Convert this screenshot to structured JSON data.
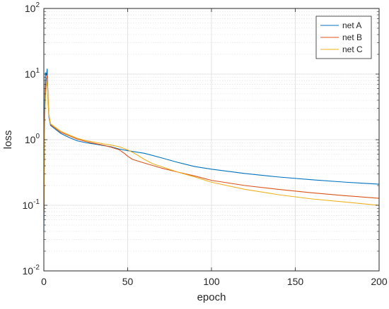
{
  "chart_data": {
    "type": "line",
    "xlabel": "epoch",
    "ylabel": "loss",
    "xlim": [
      0,
      200
    ],
    "ylim": [
      0.01,
      100
    ],
    "yscale": "log",
    "grid": true,
    "minor_grid": true,
    "legend_position": "top-right",
    "x_ticks": [
      0,
      50,
      100,
      150,
      200
    ],
    "x_tick_labels": [
      "0",
      "50",
      "100",
      "150",
      "200"
    ],
    "y_ticks": [
      0.01,
      0.1,
      1,
      10,
      100
    ],
    "y_tick_labels": [
      {
        "base": "10",
        "exp": "-2"
      },
      {
        "base": "10",
        "exp": "-1"
      },
      {
        "base": "10",
        "exp": "0"
      },
      {
        "base": "10",
        "exp": "1"
      },
      {
        "base": "10",
        "exp": "2"
      }
    ],
    "series": [
      {
        "name": "net A",
        "color": "#0072BD",
        "points": [
          [
            0,
            0.04
          ],
          [
            0.5,
            3.5
          ],
          [
            1,
            10.5
          ],
          [
            1.5,
            9.5
          ],
          [
            2,
            12.0
          ],
          [
            2.5,
            4.0
          ],
          [
            3,
            2.2
          ],
          [
            4,
            1.65
          ],
          [
            6,
            1.5
          ],
          [
            10,
            1.25
          ],
          [
            15,
            1.08
          ],
          [
            20,
            0.96
          ],
          [
            25,
            0.9
          ],
          [
            30,
            0.86
          ],
          [
            35,
            0.82
          ],
          [
            40,
            0.78
          ],
          [
            45,
            0.72
          ],
          [
            50,
            0.68
          ],
          [
            55,
            0.65
          ],
          [
            60,
            0.62
          ],
          [
            70,
            0.53
          ],
          [
            80,
            0.45
          ],
          [
            90,
            0.39
          ],
          [
            100,
            0.355
          ],
          [
            120,
            0.305
          ],
          [
            140,
            0.27
          ],
          [
            160,
            0.245
          ],
          [
            180,
            0.225
          ],
          [
            200,
            0.21
          ]
        ]
      },
      {
        "name": "net B",
        "color": "#D95319",
        "points": [
          [
            0,
            0.06
          ],
          [
            0.5,
            2.5
          ],
          [
            1,
            5.5
          ],
          [
            1.5,
            8.5
          ],
          [
            2,
            9.5
          ],
          [
            2.5,
            5.0
          ],
          [
            3,
            2.4
          ],
          [
            4,
            1.7
          ],
          [
            6,
            1.55
          ],
          [
            10,
            1.3
          ],
          [
            15,
            1.15
          ],
          [
            20,
            1.02
          ],
          [
            25,
            0.94
          ],
          [
            30,
            0.88
          ],
          [
            35,
            0.83
          ],
          [
            40,
            0.77
          ],
          [
            45,
            0.7
          ],
          [
            48,
            0.62
          ],
          [
            50,
            0.56
          ],
          [
            53,
            0.5
          ],
          [
            60,
            0.44
          ],
          [
            70,
            0.37
          ],
          [
            80,
            0.32
          ],
          [
            90,
            0.28
          ],
          [
            100,
            0.24
          ],
          [
            120,
            0.2
          ],
          [
            140,
            0.175
          ],
          [
            160,
            0.155
          ],
          [
            180,
            0.14
          ],
          [
            200,
            0.128
          ]
        ]
      },
      {
        "name": "net C",
        "color": "#EDB120",
        "points": [
          [
            0,
            0.08
          ],
          [
            0.5,
            1.8
          ],
          [
            1,
            4.5
          ],
          [
            1.5,
            6.5
          ],
          [
            2,
            7.5
          ],
          [
            2.5,
            4.5
          ],
          [
            3,
            2.3
          ],
          [
            4,
            1.75
          ],
          [
            6,
            1.6
          ],
          [
            10,
            1.35
          ],
          [
            15,
            1.18
          ],
          [
            20,
            1.05
          ],
          [
            25,
            0.97
          ],
          [
            30,
            0.92
          ],
          [
            35,
            0.87
          ],
          [
            40,
            0.83
          ],
          [
            45,
            0.78
          ],
          [
            50,
            0.7
          ],
          [
            55,
            0.6
          ],
          [
            60,
            0.5
          ],
          [
            65,
            0.43
          ],
          [
            70,
            0.39
          ],
          [
            80,
            0.32
          ],
          [
            90,
            0.27
          ],
          [
            100,
            0.225
          ],
          [
            120,
            0.175
          ],
          [
            140,
            0.145
          ],
          [
            160,
            0.125
          ],
          [
            180,
            0.112
          ],
          [
            200,
            0.1
          ]
        ]
      }
    ]
  }
}
